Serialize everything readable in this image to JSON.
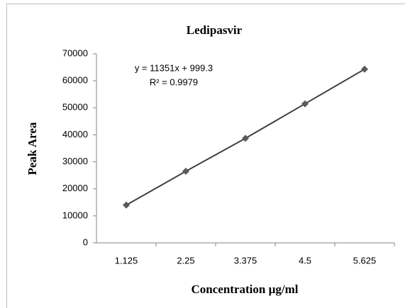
{
  "chart_data": {
    "type": "line",
    "title": "Ledipasvir",
    "x_label": "Concentration µg/ml",
    "y_label": "Peak Area",
    "annotations": [
      "y = 11351x + 999.3",
      "R² = 0.9979"
    ],
    "categories": [
      "1.125",
      "2.25",
      "3.375",
      "4.5",
      "5.625"
    ],
    "series": [
      {
        "name": "Peak Area",
        "color": "#404040",
        "marker_color": "#5a5a5a",
        "values": [
          14000,
          26500,
          38700,
          51500,
          64300
        ]
      }
    ],
    "ylim": [
      0,
      70000
    ],
    "yticks": [
      0,
      10000,
      20000,
      30000,
      40000,
      50000,
      60000,
      70000
    ],
    "grid": false
  }
}
